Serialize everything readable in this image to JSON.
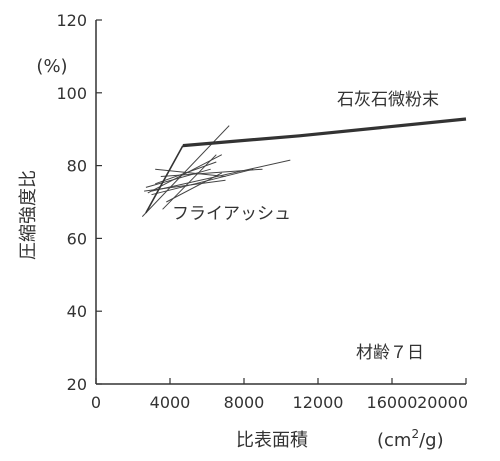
{
  "chart_data": {
    "type": "line",
    "title": "",
    "xlabel": "比表面積",
    "xunit_main": "(cm",
    "xunit_sup": "2",
    "xunit_tail": "/g)",
    "ylabel": "圧縮強度比",
    "yunit": "(%)",
    "xlim": [
      0,
      20000
    ],
    "ylim": [
      20,
      120
    ],
    "xticks": [
      0,
      4000,
      8000,
      12000,
      16000,
      20000
    ],
    "yticks": [
      20,
      40,
      60,
      80,
      100,
      120
    ],
    "grid": false,
    "annotations": {
      "limestone": "石灰石微粉末",
      "flyash": "フライアッシュ",
      "age": "材齢７日"
    },
    "series": [
      {
        "name": "石灰石微粉末",
        "x": [
          4700,
          11000,
          20000
        ],
        "y": [
          85.5,
          88.2,
          92.8
        ]
      },
      {
        "x": [
          2700,
          4700
        ],
        "y": [
          67,
          85.5
        ]
      }
    ],
    "flyash_lines": [
      {
        "x": [
          2500,
          7200
        ],
        "y": [
          66,
          91
        ]
      },
      {
        "x": [
          2800,
          6800
        ],
        "y": [
          72.5,
          83
        ]
      },
      {
        "x": [
          3000,
          10500
        ],
        "y": [
          73,
          81.5
        ]
      },
      {
        "x": [
          3200,
          6500
        ],
        "y": [
          75,
          81
        ]
      },
      {
        "x": [
          2600,
          7000
        ],
        "y": [
          73,
          76
        ]
      },
      {
        "x": [
          3000,
          8500
        ],
        "y": [
          72,
          79
        ]
      },
      {
        "x": [
          3500,
          9000
        ],
        "y": [
          77,
          79
        ]
      },
      {
        "x": [
          2700,
          6200
        ],
        "y": [
          74,
          79
        ]
      },
      {
        "x": [
          3600,
          6500
        ],
        "y": [
          68,
          83
        ]
      },
      {
        "x": [
          3800,
          6800
        ],
        "y": [
          70,
          78
        ]
      },
      {
        "x": [
          3200,
          7000
        ],
        "y": [
          79,
          77
        ]
      }
    ]
  }
}
